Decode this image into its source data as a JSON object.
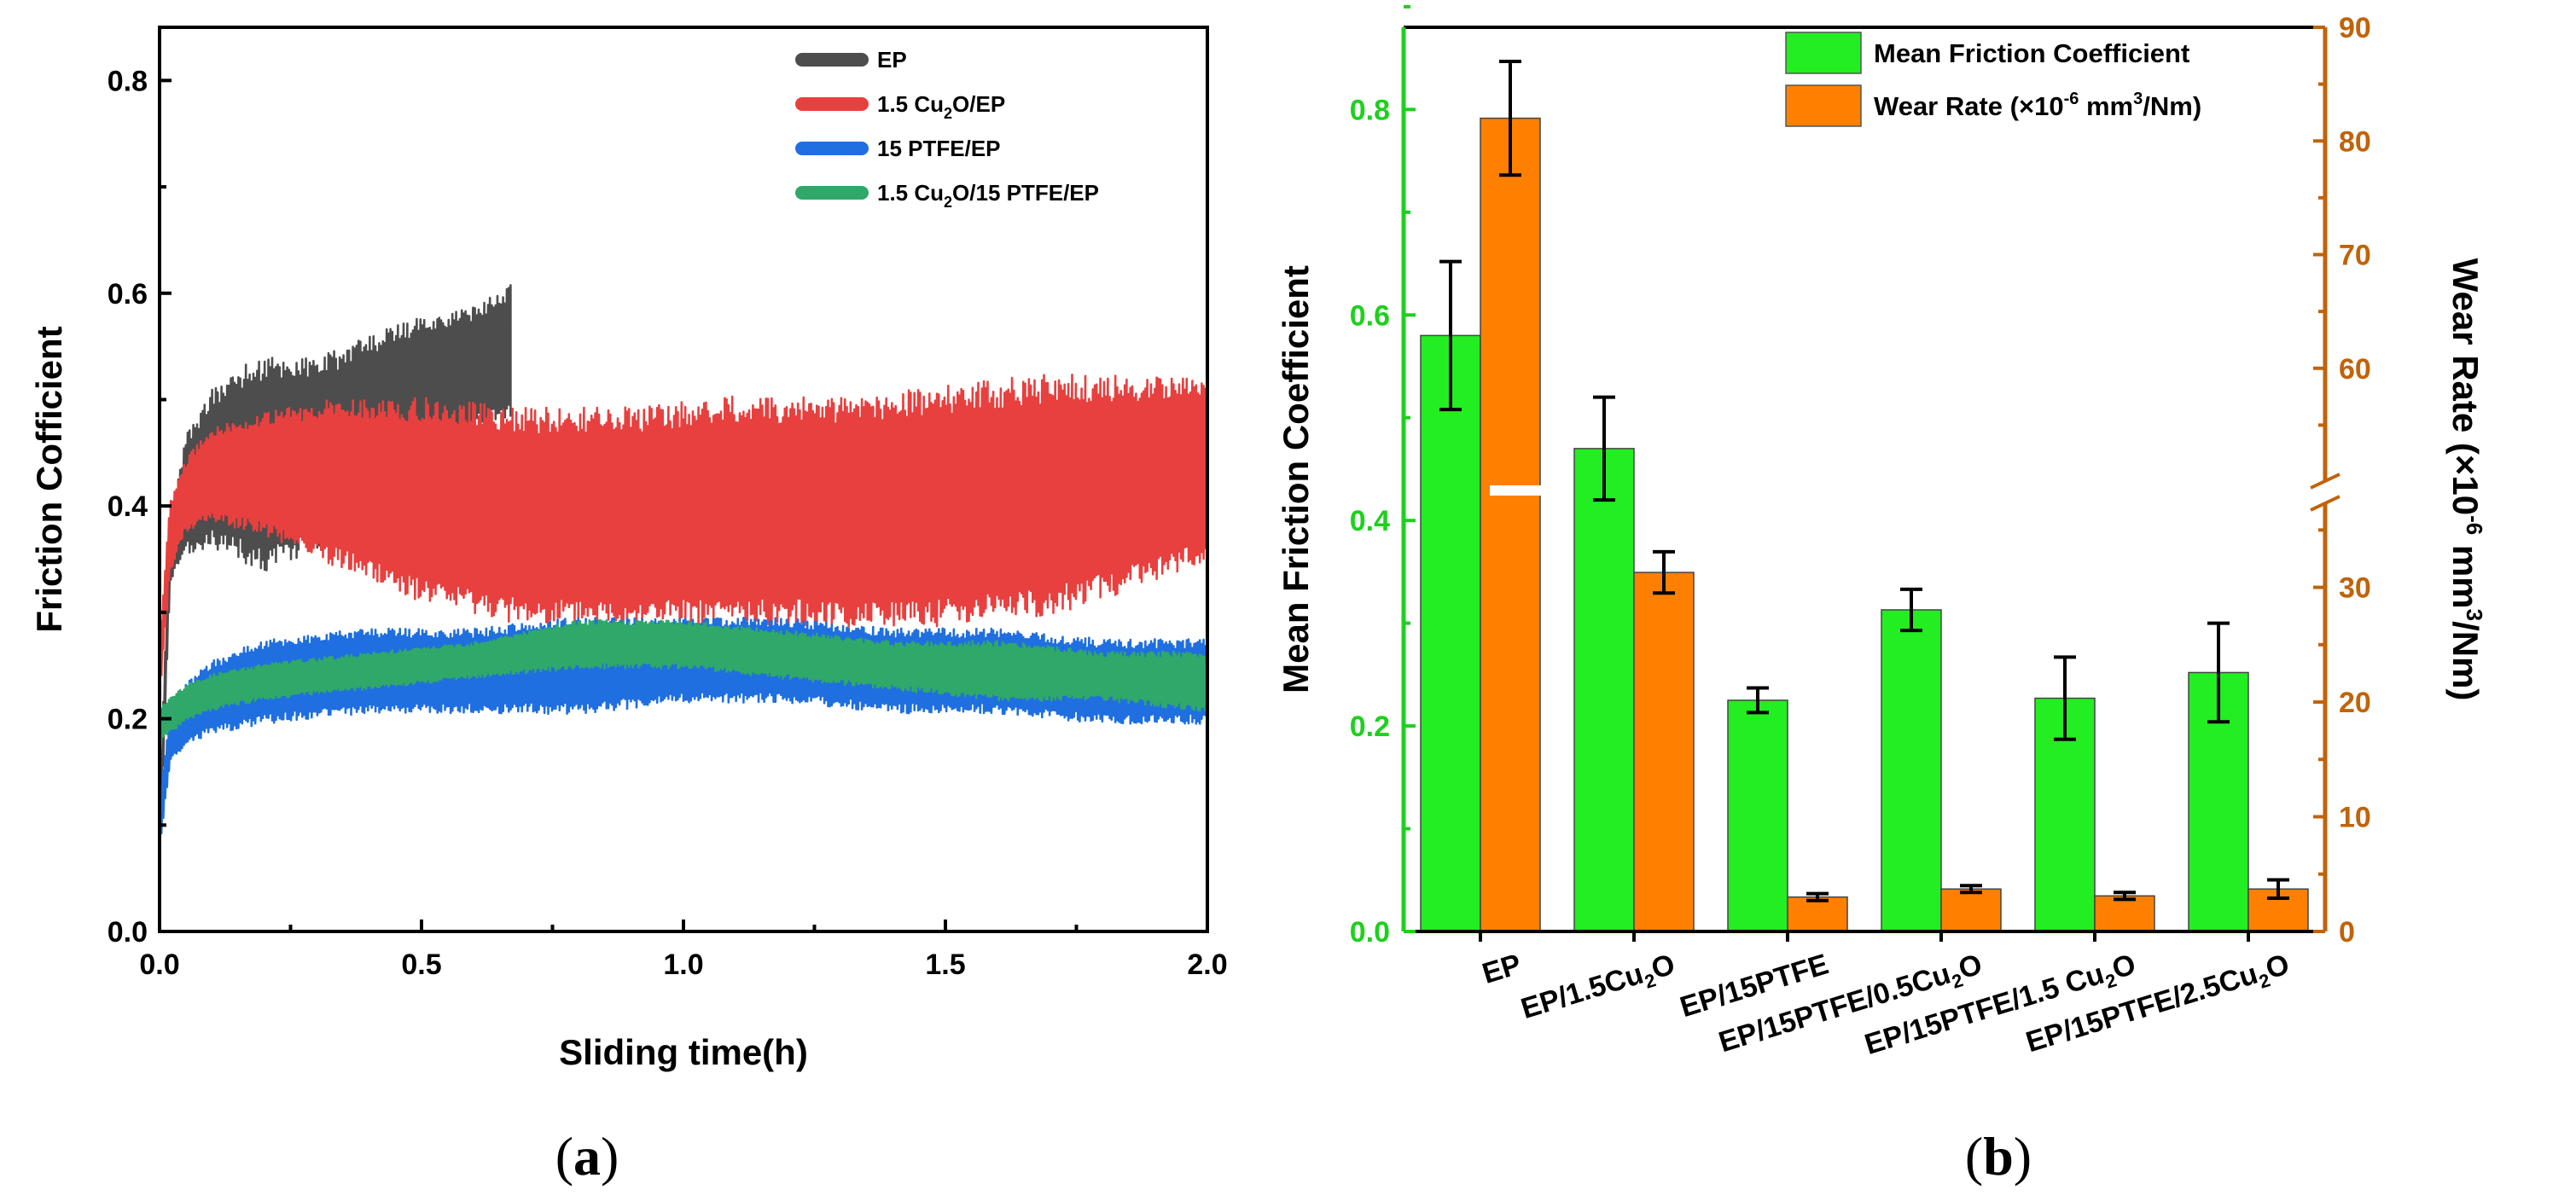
{
  "panel_a_label": "a",
  "panel_b_label": "b",
  "chart_data": [
    {
      "type": "line",
      "panel": "a",
      "xlabel": "Sliding time(h)",
      "ylabel": "Friction Cofficient",
      "xlim": [
        0,
        2.0
      ],
      "ylim": [
        0,
        0.85
      ],
      "xticks": [
        "0.0",
        "0.5",
        "1.0",
        "1.5",
        "2.0"
      ],
      "yticks": [
        "0.0",
        "0.2",
        "0.4",
        "0.6",
        "0.8"
      ],
      "legend_position": "top-right",
      "series": [
        {
          "name": "EP",
          "name_main": "EP",
          "name_sub": "",
          "name_rest": "",
          "color": "#4d4d4d",
          "x": [
            0.0,
            0.02,
            0.05,
            0.1,
            0.15,
            0.2,
            0.3,
            0.4,
            0.5,
            0.6,
            0.67
          ],
          "lo": [
            0.06,
            0.33,
            0.36,
            0.37,
            0.36,
            0.35,
            0.37,
            0.4,
            0.45,
            0.48,
            0.49
          ],
          "hi": [
            0.12,
            0.38,
            0.46,
            0.5,
            0.52,
            0.53,
            0.53,
            0.55,
            0.57,
            0.58,
            0.6
          ]
        },
        {
          "name": "1.5 Cu2O/EP",
          "name_main": "1.5 Cu",
          "name_sub": "2",
          "name_rest": "O/EP",
          "color": "#e8403f",
          "x": [
            0.0,
            0.02,
            0.05,
            0.1,
            0.2,
            0.3,
            0.5,
            0.7,
            0.9,
            1.1,
            1.3,
            1.5,
            1.7,
            1.9,
            2.0
          ],
          "lo": [
            0.22,
            0.34,
            0.38,
            0.39,
            0.38,
            0.36,
            0.32,
            0.3,
            0.3,
            0.3,
            0.3,
            0.3,
            0.31,
            0.34,
            0.36
          ],
          "hi": [
            0.27,
            0.4,
            0.44,
            0.47,
            0.48,
            0.49,
            0.49,
            0.48,
            0.48,
            0.49,
            0.49,
            0.5,
            0.51,
            0.51,
            0.51
          ]
        },
        {
          "name": "15 PTFE/EP",
          "name_main": "15 PTFE/EP",
          "name_sub": "",
          "name_rest": "",
          "color": "#1f6fe0",
          "x": [
            0.0,
            0.02,
            0.05,
            0.1,
            0.2,
            0.4,
            0.6,
            0.8,
            1.0,
            1.2,
            1.4,
            1.6,
            1.8,
            2.0
          ],
          "lo": [
            0.08,
            0.16,
            0.18,
            0.19,
            0.2,
            0.21,
            0.21,
            0.21,
            0.22,
            0.22,
            0.21,
            0.21,
            0.2,
            0.2
          ],
          "hi": [
            0.12,
            0.2,
            0.23,
            0.25,
            0.27,
            0.28,
            0.28,
            0.29,
            0.29,
            0.29,
            0.28,
            0.28,
            0.27,
            0.27
          ]
        },
        {
          "name": "1.5 Cu2O/15 PTFE/EP",
          "name_main": "1.5 Cu",
          "name_sub": "2",
          "name_rest": "O/15 PTFE/EP",
          "color": "#2fa86a",
          "x": [
            0.0,
            0.05,
            0.1,
            0.2,
            0.4,
            0.6,
            0.8,
            1.0,
            1.2,
            1.4,
            1.6,
            1.8,
            2.0
          ],
          "lo": [
            0.18,
            0.2,
            0.21,
            0.22,
            0.23,
            0.24,
            0.25,
            0.25,
            0.24,
            0.23,
            0.22,
            0.22,
            0.21
          ],
          "hi": [
            0.21,
            0.23,
            0.24,
            0.25,
            0.26,
            0.27,
            0.29,
            0.29,
            0.28,
            0.27,
            0.27,
            0.26,
            0.26
          ]
        }
      ]
    },
    {
      "type": "bar",
      "panel": "b",
      "ylabel_left": "Mean Friction Coefficient",
      "ylabel_right_pre": "Wear Rate (×10",
      "ylabel_right_exp": "-6",
      "ylabel_right_mid": " mm",
      "ylabel_right_exp2": "3",
      "ylabel_right_post": "/Nm)",
      "ylim_left": [
        0,
        0.88
      ],
      "yticks_left": [
        "0.0",
        "0.2",
        "0.4",
        "0.6",
        "0.8"
      ],
      "yticks_right_lower": [
        "0",
        "10",
        "20",
        "30"
      ],
      "yticks_right_upper": [
        "60",
        "70",
        "80",
        "90"
      ],
      "right_axis_break": {
        "lower_range": [
          0,
          38
        ],
        "upper_range": [
          50,
          90
        ]
      },
      "left_axis_color": "#1ed01e",
      "right_axis_color": "#c0630a",
      "legend_position": "top-center",
      "categories": [
        {
          "main": "EP",
          "sub": "",
          "rest": ""
        },
        {
          "main": "EP/1.5Cu",
          "sub": "2",
          "rest": "O"
        },
        {
          "main": "EP/15PTFE",
          "sub": "",
          "rest": ""
        },
        {
          "main": "EP/15PTFE/0.5Cu",
          "sub": "2",
          "rest": "O"
        },
        {
          "main": "EP/15PTFE/1.5 Cu",
          "sub": "2",
          "rest": "O"
        },
        {
          "main": "EP/15PTFE/2.5Cu",
          "sub": "2",
          "rest": "O"
        }
      ],
      "series": [
        {
          "name": "Mean Friction Coefficient",
          "color": "#22ee22",
          "axis": "left",
          "values": [
            0.58,
            0.47,
            0.225,
            0.313,
            0.227,
            0.252
          ],
          "errors": [
            0.072,
            0.05,
            0.012,
            0.02,
            0.04,
            0.048
          ]
        },
        {
          "name": "Wear Rate",
          "legend_pre": "Wear Rate (×10",
          "legend_exp": "-6",
          "legend_mid": " mm",
          "legend_exp2": "3",
          "legend_post": "/Nm)",
          "color": "#ff8000",
          "axis": "right",
          "values": [
            82,
            31.3,
            3.0,
            3.7,
            3.1,
            3.7
          ],
          "errors": [
            5.0,
            1.8,
            0.3,
            0.3,
            0.3,
            0.8
          ]
        }
      ]
    }
  ]
}
